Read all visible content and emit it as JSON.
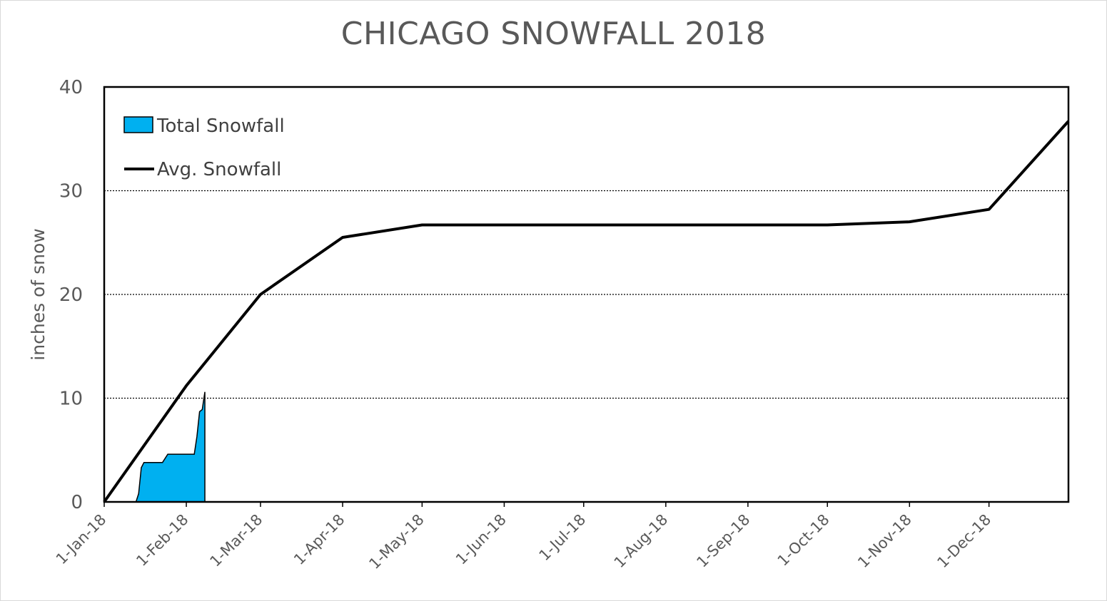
{
  "chart_data": {
    "type": "area+line",
    "title": "CHICAGO SNOWFALL 2018",
    "ylabel": "inches of snow",
    "ylim": [
      0,
      40
    ],
    "yticks": [
      "0",
      "10",
      "20",
      "30",
      "40"
    ],
    "xlim": [
      "1-Jan-18",
      "31-Dec-18"
    ],
    "xticks": [
      "1-Jan-18",
      "1-Feb-18",
      "1-Mar-18",
      "1-Apr-18",
      "1-May-18",
      "1-Jun-18",
      "1-Jul-18",
      "1-Aug-18",
      "1-Sep-18",
      "1-Oct-18",
      "1-Nov-18",
      "1-Dec-18"
    ],
    "grid": "horizontal dotted",
    "legend_position": "top-left",
    "series": [
      {
        "name": "Total Snowfall",
        "kind": "area",
        "color": "#00b0f0",
        "points": [
          [
            "1-Jan-18",
            0
          ],
          [
            "13-Jan-18",
            0
          ],
          [
            "14-Jan-18",
            0.8
          ],
          [
            "15-Jan-18",
            3.3
          ],
          [
            "16-Jan-18",
            3.8
          ],
          [
            "23-Jan-18",
            3.8
          ],
          [
            "25-Jan-18",
            4.6
          ],
          [
            "1-Feb-18",
            4.6
          ],
          [
            "4-Feb-18",
            4.6
          ],
          [
            "5-Feb-18",
            6.3
          ],
          [
            "6-Feb-18",
            8.7
          ],
          [
            "7-Feb-18",
            8.9
          ],
          [
            "8-Feb-18",
            10.6
          ]
        ]
      },
      {
        "name": "Avg. Snowfall",
        "kind": "line",
        "color": "#000000",
        "points": [
          [
            "1-Jan-18",
            0
          ],
          [
            "1-Feb-18",
            11.2
          ],
          [
            "1-Mar-18",
            20.0
          ],
          [
            "1-Apr-18",
            25.5
          ],
          [
            "1-May-18",
            26.7
          ],
          [
            "1-Jun-18",
            26.7
          ],
          [
            "1-Jul-18",
            26.7
          ],
          [
            "1-Aug-18",
            26.7
          ],
          [
            "1-Sep-18",
            26.7
          ],
          [
            "1-Oct-18",
            26.7
          ],
          [
            "1-Nov-18",
            27.0
          ],
          [
            "1-Dec-18",
            28.2
          ],
          [
            "31-Dec-18",
            36.7
          ]
        ]
      }
    ]
  }
}
